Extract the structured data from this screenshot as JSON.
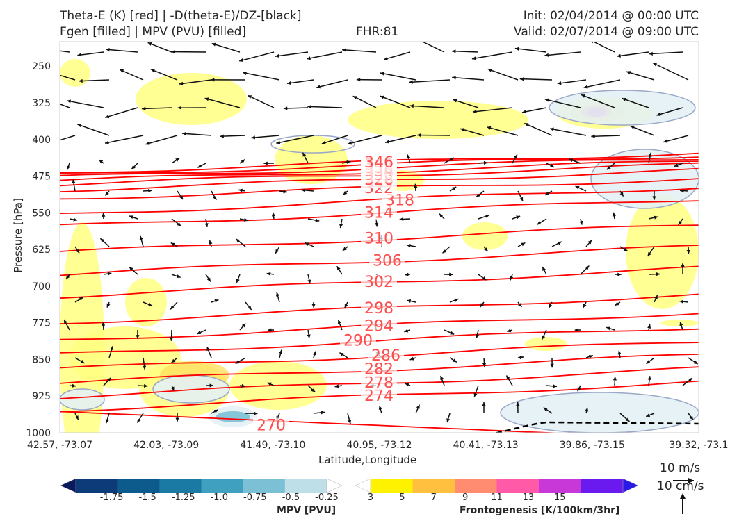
{
  "header": {
    "title_left_1": "Theta-E (K) [red] | -D(theta-E)/DZ-[black]",
    "title_left_2": "Fgen [filled] | MPV (PVU) [filled]",
    "title_center": "FHR:81",
    "title_right_1": "Init: 02/04/2014 @ 00:00 UTC",
    "title_right_2": "Valid: 02/07/2014 @ 09:00 UTC"
  },
  "colors": {
    "theta_e": "#ff0000",
    "theta_e_label": "#ff4d4d",
    "vectors": "#111111",
    "mpv_contour": "#9aa8c8",
    "fgen_low": "#ffff80"
  },
  "chart_data": {
    "type": "contour",
    "xlabel": "Latitude,Longitude",
    "ylabel": "Pressure [hPa]",
    "x_ticks": [
      "42.57, -73.07",
      "42.03, -73.09",
      "41.49, -73.10",
      "40.95, -73.12",
      "40.41, -73.13",
      "39.86, -73.15",
      "39.32, -73.1"
    ],
    "y_ticks": [
      250,
      325,
      400,
      475,
      550,
      625,
      700,
      775,
      850,
      925,
      1000
    ],
    "ylim": [
      1000,
      200
    ],
    "y_inverted": true,
    "theta_e_contours": [
      {
        "label": "270",
        "pressure": 985
      },
      {
        "label": "274",
        "pressure": 925
      },
      {
        "label": "278",
        "pressure": 898
      },
      {
        "label": "282",
        "pressure": 870
      },
      {
        "label": "286",
        "pressure": 842
      },
      {
        "label": "290",
        "pressure": 812
      },
      {
        "label": "294",
        "pressure": 782
      },
      {
        "label": "298",
        "pressure": 746
      },
      {
        "label": "302",
        "pressure": 692
      },
      {
        "label": "306",
        "pressure": 648
      },
      {
        "label": "310",
        "pressure": 603
      },
      {
        "label": "314",
        "pressure": 550
      },
      {
        "label": "318",
        "pressure": 525
      },
      {
        "label": "322",
        "pressure": 500
      },
      {
        "label": "326",
        "pressure": 483
      },
      {
        "label": "330",
        "pressure": 472
      },
      {
        "label": "334",
        "pressure": 465
      },
      {
        "label": "338",
        "pressure": 458
      },
      {
        "label": "342",
        "pressure": 452
      },
      {
        "label": "346",
        "pressure": 447
      }
    ],
    "fgen_levels": [
      3,
      5,
      7,
      9,
      11,
      13,
      15
    ],
    "mpv_levels": [
      -1.75,
      -1.5,
      -1.25,
      -1.0,
      -0.75,
      -0.5,
      -0.25
    ],
    "dashed_line": {
      "from_fraction": 0.6,
      "to_fraction": 1.0,
      "pressure_approx": 990
    }
  },
  "colorbars": {
    "mpv": {
      "label": "MPV [PVU]",
      "ticks": [
        "-1.75",
        "-1.5",
        "-1.25",
        "-1.0",
        "-0.75",
        "-0.5",
        "-0.25"
      ],
      "colors": [
        "#0a1a5c",
        "#0d3a78",
        "#0d5a8c",
        "#1a7aa3",
        "#3fa0c0",
        "#7cc0d6",
        "#bfdfe8",
        "#ffffff"
      ]
    },
    "fgen": {
      "label": "Frontogenesis [K/100km/3hr]",
      "ticks": [
        "3",
        "5",
        "7",
        "9",
        "11",
        "13",
        "15"
      ],
      "colors": [
        "#ffffff",
        "#fff200",
        "#ffc040",
        "#ff8c70",
        "#ff5aa8",
        "#c838d8",
        "#6a1aee",
        "#2a1ae8"
      ]
    }
  },
  "vector_key": {
    "label_1": "10 m/s",
    "label_2": "10 cm/s"
  }
}
